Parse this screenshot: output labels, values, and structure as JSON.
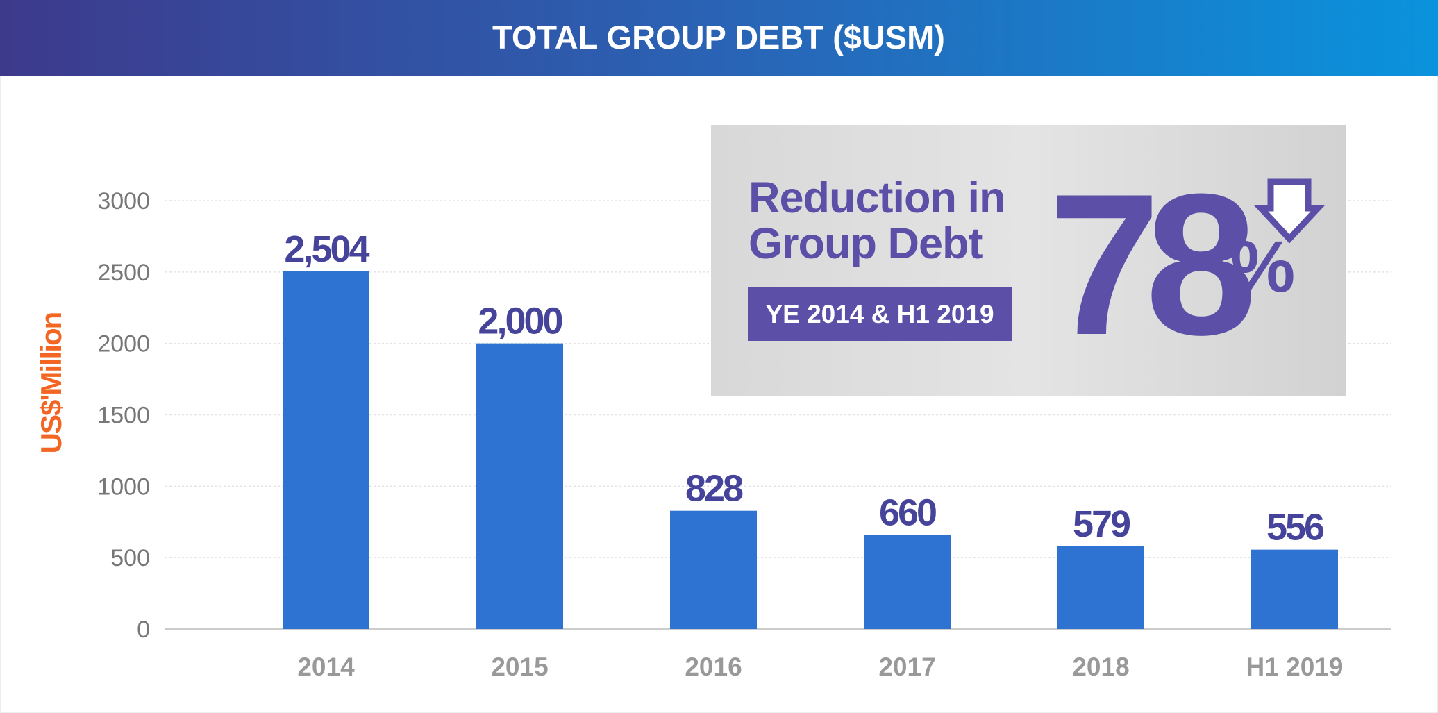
{
  "chart_data": {
    "type": "bar",
    "title": "TOTAL GROUP DEBT ($USM)",
    "y_label": "US$'Million",
    "categories": [
      "2014",
      "2015",
      "2016",
      "2017",
      "2018",
      "H1 2019"
    ],
    "values": [
      2504,
      2000,
      828,
      660,
      579,
      556
    ],
    "value_labels": [
      "2,504",
      "2,000",
      "828",
      "660",
      "579",
      "556"
    ],
    "color": "#2e73d1",
    "ylim": [
      0,
      3000
    ],
    "yticks": [
      0,
      500,
      1000,
      1500,
      2000,
      2500,
      3000
    ],
    "grid": true,
    "annotation": {
      "lines": [
        "Reduction in",
        "Group Debt"
      ],
      "period": "YE 2014 & H1 2019",
      "value": 78,
      "unit": "%"
    }
  }
}
